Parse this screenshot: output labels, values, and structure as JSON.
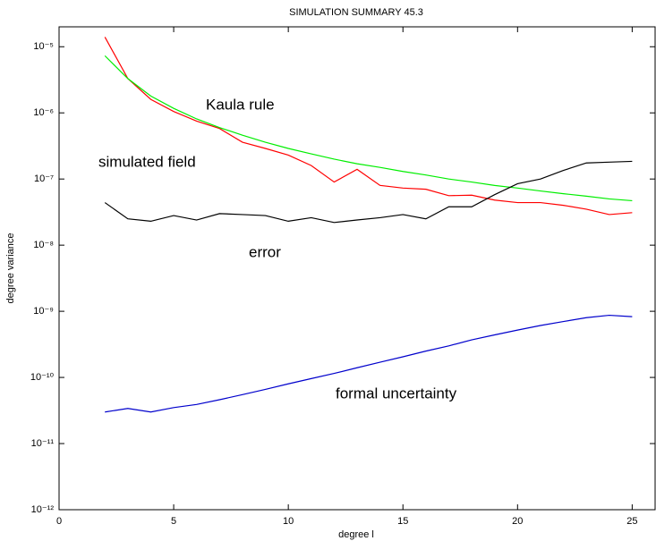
{
  "chart_data": {
    "type": "line",
    "title": "SIMULATION SUMMARY 45.3",
    "xlabel": "degree l",
    "ylabel": "degree variance",
    "x": [
      2,
      3,
      4,
      5,
      6,
      7,
      8,
      9,
      10,
      11,
      12,
      13,
      14,
      15,
      16,
      17,
      18,
      19,
      20,
      21,
      22,
      23,
      24,
      25
    ],
    "series": [
      {
        "name": "simulated field",
        "color": "#ff0000",
        "values": [
          1.4e-05,
          3.3e-06,
          1.6e-06,
          1.05e-06,
          7.5e-07,
          5.8e-07,
          3.6e-07,
          2.9e-07,
          2.3e-07,
          1.6e-07,
          9e-08,
          1.4e-07,
          8e-08,
          7.3e-08,
          7e-08,
          5.6e-08,
          5.7e-08,
          4.8e-08,
          4.4e-08,
          4.4e-08,
          4e-08,
          3.5e-08,
          2.9e-08,
          3.1e-08
        ]
      },
      {
        "name": "Kaula rule",
        "color": "#00ee00",
        "values": [
          7.3e-06,
          3.3e-06,
          1.8e-06,
          1.17e-06,
          8.1e-07,
          6e-07,
          4.6e-07,
          3.6e-07,
          2.9e-07,
          2.4e-07,
          2e-07,
          1.7e-07,
          1.5e-07,
          1.3e-07,
          1.15e-07,
          1e-07,
          9e-08,
          8e-08,
          7.3e-08,
          6.6e-08,
          6e-08,
          5.5e-08,
          5e-08,
          4.7e-08
        ]
      },
      {
        "name": "error",
        "color": "#000000",
        "values": [
          4.4e-08,
          2.5e-08,
          2.3e-08,
          2.8e-08,
          2.4e-08,
          3e-08,
          2.9e-08,
          2.8e-08,
          2.3e-08,
          2.6e-08,
          2.2e-08,
          2.4e-08,
          2.6e-08,
          2.9e-08,
          2.5e-08,
          3.8e-08,
          3.8e-08,
          5.8e-08,
          8.5e-08,
          1e-07,
          1.35e-07,
          1.75e-07,
          1.8e-07,
          1.85e-07
        ]
      },
      {
        "name": "formal uncertainty",
        "color": "#0000cc",
        "values": [
          3e-11,
          3.4e-11,
          3e-11,
          3.5e-11,
          3.9e-11,
          4.6e-11,
          5.5e-11,
          6.6e-11,
          8e-11,
          9.6e-11,
          1.15e-10,
          1.4e-10,
          1.7e-10,
          2.05e-10,
          2.5e-10,
          3e-10,
          3.7e-10,
          4.4e-10,
          5.2e-10,
          6.1e-10,
          7e-10,
          8e-10,
          8.7e-10,
          8.3e-10
        ]
      }
    ],
    "xlim": [
      0,
      26
    ],
    "xticks": [
      0,
      5,
      10,
      15,
      20,
      25
    ],
    "ylim": [
      1e-12,
      2e-05
    ],
    "log_y": true,
    "yticks": [
      {
        "value": 1e-12,
        "label": "10⁻¹²"
      },
      {
        "value": 1e-11,
        "label": "10⁻¹¹"
      },
      {
        "value": 1e-10,
        "label": "10⁻¹⁰"
      },
      {
        "value": 1e-09,
        "label": "10⁻⁹"
      },
      {
        "value": 1e-08,
        "label": "10⁻⁸"
      },
      {
        "value": 1e-07,
        "label": "10⁻⁷"
      },
      {
        "value": 1e-06,
        "label": "10⁻⁶"
      },
      {
        "value": 1e-05,
        "label": "10⁻⁵"
      }
    ]
  }
}
